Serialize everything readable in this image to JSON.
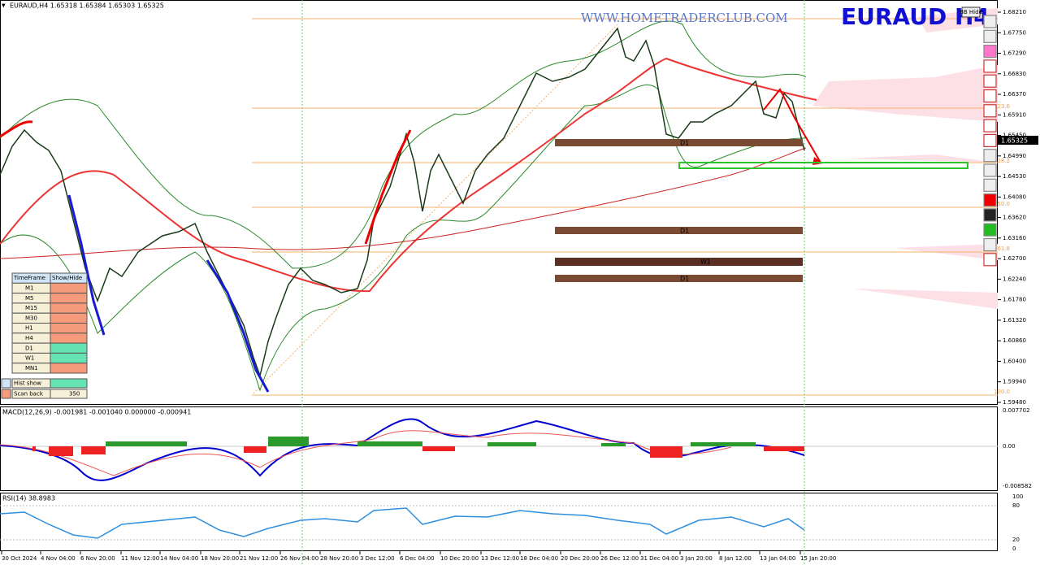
{
  "header": {
    "symbol_info": "EURAUD,H4 1.65318 1.65384 1.65303 1.65325",
    "watermark": "WWW.HOMETRADERCLUB.COM",
    "title": "EURAUD  H4",
    "bb_hide": "BB Hide"
  },
  "price_axis": {
    "labels": [
      "1.68210",
      "1.67750",
      "1.67290",
      "1.66830",
      "1.66370",
      "1.65910",
      "1.65450",
      "1.64990",
      "1.64530",
      "1.64080",
      "1.63620",
      "1.63160",
      "1.62700",
      "1.62240",
      "1.61780",
      "1.61320",
      "1.60860",
      "1.60400",
      "1.59940",
      "1.59480"
    ],
    "current_price": "1.65325"
  },
  "zones": [
    "D1",
    "D1",
    "W1",
    "D1"
  ],
  "fib_levels": [
    "23.6",
    "38.2",
    "50.0",
    "61.8",
    "100.0"
  ],
  "timeframe_panel": {
    "header": [
      "TimeFrame",
      "Show/Hide"
    ],
    "rows": [
      "M1",
      "M5",
      "M15",
      "M30",
      "H1",
      "H4",
      "D1",
      "W1",
      "MN1"
    ],
    "hist_show": "Hist show",
    "scan_back": {
      "label": "Scan back",
      "value": "350"
    }
  },
  "macd": {
    "label": "MACD(12,26,9) -0.001981 -0.001040 0.000000 -0.000941",
    "axis": [
      "0.007702",
      "0.00",
      "-0.008582"
    ]
  },
  "rsi": {
    "label": "RSI(14) 38.8983",
    "axis": [
      "100",
      "80",
      "20",
      "0"
    ]
  },
  "time_axis": [
    "30 Oct 2024",
    "4 Nov 04:00",
    "6 Nov 20:00",
    "11 Nov 12:00",
    "14 Nov 04:00",
    "18 Nov 20:00",
    "21 Nov 12:00",
    "26 Nov 04:00",
    "28 Nov 20:00",
    "3 Dec 12:00",
    "6 Dec 04:00",
    "10 Dec 20:00",
    "13 Dec 12:00",
    "18 Dec 04:00",
    "20 Dec 20:00",
    "26 Dec 12:00",
    "31 Dec 04:00",
    "3 Jan 20:00",
    "8 Jan 12:00",
    "13 Jan 04:00",
    "15 Jan 20:00"
  ]
}
